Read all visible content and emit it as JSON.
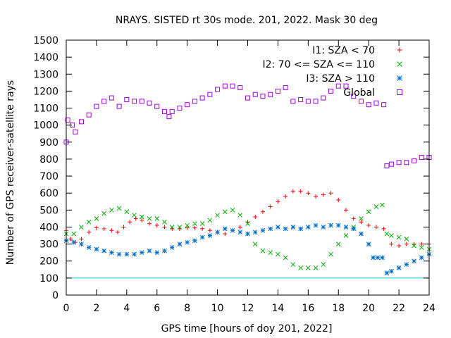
{
  "chart_data": {
    "type": "scatter",
    "title": "NRAYS. SISTED rt 30s mode. 201, 2022. Mask 30 deg",
    "xlabel": "GPS time [hours of doy 201, 2022]",
    "ylabel": "Number of GPS receiver-satellite rays",
    "xlim": [
      0,
      24
    ],
    "ylim": [
      0,
      1500
    ],
    "xticks": [
      0,
      2,
      4,
      6,
      8,
      10,
      12,
      14,
      16,
      18,
      20,
      22,
      24
    ],
    "yticks": [
      0,
      100,
      200,
      300,
      400,
      500,
      600,
      700,
      800,
      900,
      1000,
      1100,
      1200,
      1300,
      1400,
      1500
    ],
    "reference_line": {
      "y": 100,
      "color": "#00c8c8"
    },
    "legend_position": "top-right",
    "series": [
      {
        "name": "I1: SZA < 70",
        "color": "#ff0000",
        "marker": "plus",
        "points": [
          [
            0,
            380
          ],
          [
            0.3,
            330
          ],
          [
            0.6,
            310
          ],
          [
            1,
            330
          ],
          [
            1.5,
            370
          ],
          [
            2,
            395
          ],
          [
            2.5,
            390
          ],
          [
            3,
            380
          ],
          [
            3.4,
            370
          ],
          [
            3.8,
            400
          ],
          [
            4.2,
            430
          ],
          [
            4.6,
            450
          ],
          [
            5,
            440
          ],
          [
            5.5,
            420
          ],
          [
            6,
            410
          ],
          [
            6.5,
            400
          ],
          [
            7,
            390
          ],
          [
            7.5,
            390
          ],
          [
            8,
            395
          ],
          [
            8.5,
            395
          ],
          [
            9,
            390
          ],
          [
            9.5,
            380
          ],
          [
            10,
            370
          ],
          [
            10.5,
            360
          ],
          [
            11,
            380
          ],
          [
            11.5,
            400
          ],
          [
            12,
            430
          ],
          [
            12.5,
            460
          ],
          [
            13,
            490
          ],
          [
            13.5,
            520
          ],
          [
            14,
            550
          ],
          [
            14.5,
            580
          ],
          [
            15,
            610
          ],
          [
            15.5,
            610
          ],
          [
            16,
            600
          ],
          [
            16.5,
            580
          ],
          [
            17,
            590
          ],
          [
            17.5,
            600
          ],
          [
            18,
            560
          ],
          [
            18.5,
            500
          ],
          [
            19,
            450
          ],
          [
            19.5,
            430
          ],
          [
            20,
            410
          ],
          [
            20.5,
            400
          ],
          [
            21,
            390
          ],
          [
            21.5,
            300
          ],
          [
            22,
            290
          ],
          [
            22.5,
            300
          ],
          [
            23,
            300
          ],
          [
            23.5,
            300
          ],
          [
            24,
            300
          ]
        ]
      },
      {
        "name": "I2: 70 <= SZA <= 110",
        "color": "#00b000",
        "marker": "cross",
        "points": [
          [
            0,
            360
          ],
          [
            0.5,
            360
          ],
          [
            1,
            400
          ],
          [
            1.5,
            430
          ],
          [
            2,
            450
          ],
          [
            2.5,
            480
          ],
          [
            3,
            500
          ],
          [
            3.5,
            510
          ],
          [
            4,
            490
          ],
          [
            4.5,
            470
          ],
          [
            5,
            460
          ],
          [
            5.5,
            450
          ],
          [
            6,
            450
          ],
          [
            6.5,
            430
          ],
          [
            7,
            400
          ],
          [
            7.5,
            400
          ],
          [
            8,
            410
          ],
          [
            8.5,
            420
          ],
          [
            9,
            420
          ],
          [
            9.5,
            440
          ],
          [
            10,
            470
          ],
          [
            10.5,
            490
          ],
          [
            11,
            500
          ],
          [
            11.5,
            470
          ],
          [
            12,
            420
          ],
          [
            12.5,
            300
          ],
          [
            13,
            260
          ],
          [
            13.5,
            250
          ],
          [
            14,
            240
          ],
          [
            14.5,
            220
          ],
          [
            15,
            180
          ],
          [
            15.5,
            160
          ],
          [
            16,
            160
          ],
          [
            16.5,
            160
          ],
          [
            17,
            180
          ],
          [
            17.5,
            240
          ],
          [
            18,
            300
          ],
          [
            18.5,
            350
          ],
          [
            19,
            400
          ],
          [
            19.5,
            450
          ],
          [
            20,
            490
          ],
          [
            20.5,
            520
          ],
          [
            20.9,
            530
          ],
          [
            21.2,
            360
          ],
          [
            21.5,
            350
          ],
          [
            22,
            340
          ],
          [
            22.5,
            330
          ],
          [
            23,
            290
          ],
          [
            23.5,
            280
          ],
          [
            24,
            270
          ]
        ]
      },
      {
        "name": "I3: SZA > 110",
        "color": "#0070d0",
        "marker": "star",
        "points": [
          [
            0,
            320
          ],
          [
            0.5,
            310
          ],
          [
            1,
            300
          ],
          [
            1.5,
            280
          ],
          [
            2,
            270
          ],
          [
            2.5,
            260
          ],
          [
            3,
            250
          ],
          [
            3.5,
            240
          ],
          [
            4,
            240
          ],
          [
            4.5,
            240
          ],
          [
            5,
            250
          ],
          [
            5.5,
            260
          ],
          [
            6,
            250
          ],
          [
            6.5,
            260
          ],
          [
            7,
            280
          ],
          [
            7.5,
            300
          ],
          [
            8,
            310
          ],
          [
            8.5,
            320
          ],
          [
            9,
            340
          ],
          [
            9.5,
            350
          ],
          [
            10,
            370
          ],
          [
            10.5,
            390
          ],
          [
            11,
            380
          ],
          [
            11.5,
            370
          ],
          [
            12,
            360
          ],
          [
            12.5,
            370
          ],
          [
            13,
            380
          ],
          [
            13.5,
            390
          ],
          [
            14,
            400
          ],
          [
            14.5,
            390
          ],
          [
            15,
            400
          ],
          [
            15.5,
            390
          ],
          [
            16,
            400
          ],
          [
            16.5,
            410
          ],
          [
            17,
            400
          ],
          [
            17.5,
            410
          ],
          [
            18,
            410
          ],
          [
            18.5,
            400
          ],
          [
            19,
            390
          ],
          [
            19.5,
            360
          ],
          [
            20,
            300
          ],
          [
            20.3,
            220
          ],
          [
            20.6,
            220
          ],
          [
            20.9,
            220
          ],
          [
            21.2,
            130
          ],
          [
            21.5,
            140
          ],
          [
            22,
            160
          ],
          [
            22.5,
            180
          ],
          [
            23,
            200
          ],
          [
            23.5,
            220
          ],
          [
            24,
            240
          ]
        ]
      },
      {
        "name": "Global",
        "color": "#a000f0",
        "marker": "square",
        "points": [
          [
            0,
            900
          ],
          [
            0.1,
            1030
          ],
          [
            0.4,
            1000
          ],
          [
            0.6,
            960
          ],
          [
            1,
            1020
          ],
          [
            1.5,
            1060
          ],
          [
            2,
            1110
          ],
          [
            2.5,
            1140
          ],
          [
            3,
            1160
          ],
          [
            3.5,
            1110
          ],
          [
            4,
            1150
          ],
          [
            4.5,
            1140
          ],
          [
            5,
            1140
          ],
          [
            5.5,
            1130
          ],
          [
            6,
            1110
          ],
          [
            6.5,
            1080
          ],
          [
            6.8,
            1050
          ],
          [
            7,
            1080
          ],
          [
            7.5,
            1100
          ],
          [
            8,
            1120
          ],
          [
            8.5,
            1140
          ],
          [
            9,
            1160
          ],
          [
            9.5,
            1180
          ],
          [
            10,
            1210
          ],
          [
            10.5,
            1230
          ],
          [
            11,
            1230
          ],
          [
            11.5,
            1220
          ],
          [
            12,
            1160
          ],
          [
            12.5,
            1180
          ],
          [
            13,
            1170
          ],
          [
            13.5,
            1180
          ],
          [
            14,
            1200
          ],
          [
            14.5,
            1220
          ],
          [
            15,
            1140
          ],
          [
            15.5,
            1150
          ],
          [
            16,
            1140
          ],
          [
            16.5,
            1140
          ],
          [
            17,
            1160
          ],
          [
            17.5,
            1200
          ],
          [
            18,
            1230
          ],
          [
            18.5,
            1230
          ],
          [
            19,
            1170
          ],
          [
            19.5,
            1140
          ],
          [
            20,
            1120
          ],
          [
            20.5,
            1130
          ],
          [
            21,
            1120
          ],
          [
            21.2,
            760
          ],
          [
            21.5,
            770
          ],
          [
            22,
            780
          ],
          [
            22.5,
            780
          ],
          [
            23,
            790
          ],
          [
            23.5,
            810
          ],
          [
            24,
            810
          ]
        ]
      }
    ]
  }
}
